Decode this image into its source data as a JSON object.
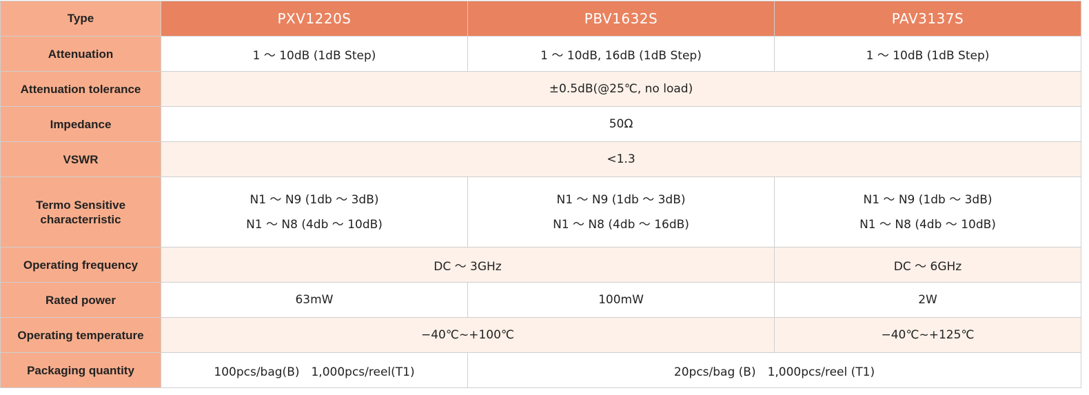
{
  "table": {
    "header": [
      "Type",
      "PXV1220S",
      "PBV1632S",
      "PAV3137S"
    ],
    "rows": [
      {
        "label": "Attenuation",
        "cells": [
          "1 ～ 10dB (1dB Step)",
          "1 ～ 10dB, 16dB (1dB Step)",
          "1 ～ 10dB (1dB Step)"
        ]
      },
      {
        "label": "Attenuation tolerance",
        "cells": [
          "±0.5dB(@25℃, no load)"
        ]
      },
      {
        "label": "Impedance",
        "cells": [
          "50Ω"
        ]
      },
      {
        "label": "VSWR",
        "cells": [
          "<1.3"
        ]
      },
      {
        "label": "Termo Sensitive characterristic",
        "cells": [
          [
            "N1 ～ N9 (1db ～ 3dB)",
            "N1 ～ N8 (4db ～ 10dB)"
          ],
          [
            "N1 ～ N9 (1db ～ 3dB)",
            "N1 ～ N8 (4db ～ 16dB)"
          ],
          [
            "N1 ～ N9 (1db ～ 3dB)",
            "N1 ～ N8 (4db ～ 10dB)"
          ]
        ]
      },
      {
        "label": "Operating frequency",
        "cells": [
          "DC ～ 3GHz",
          "DC ～ 6GHz"
        ]
      },
      {
        "label": "Rated power",
        "cells": [
          "63mW",
          "100mW",
          "2W"
        ]
      },
      {
        "label": "Operating temperature",
        "cells": [
          "−40℃~+100℃",
          "−40℃~+125℃"
        ]
      },
      {
        "label": "Packaging quantity",
        "cells": [
          "100pcs/bag(B)　1,000pcs/reel(T1)",
          "20pcs/bag (B)　1,000pcs/reel (T1)"
        ]
      }
    ]
  }
}
